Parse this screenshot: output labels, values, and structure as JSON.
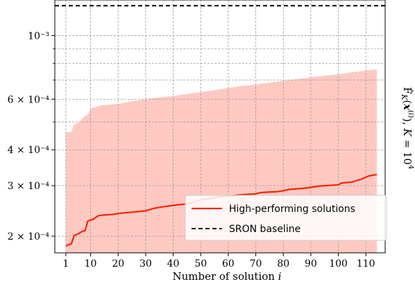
{
  "chart_data": {
    "type": "line",
    "xlabel": "Number of solution i",
    "ylabel": "F̂_K(x⁽ⁱ⁾), K = 10⁴",
    "y_scale": "log",
    "xlim": [
      -3,
      117
    ],
    "ylim": [
      0.000175,
      0.00133
    ],
    "x_ticks": [
      1,
      10,
      20,
      30,
      40,
      50,
      60,
      70,
      80,
      90,
      100,
      110
    ],
    "y_ticks": [
      {
        "value": 0.0002,
        "label": "2 × 10⁻⁴"
      },
      {
        "value": 0.0003,
        "label": "3 × 10⁻⁴"
      },
      {
        "value": 0.0004,
        "label": "4 × 10⁻⁴"
      },
      {
        "value": 0.0006,
        "label": "6 × 10⁻⁴"
      },
      {
        "value": 0.001,
        "label": "10⁻³"
      }
    ],
    "y_minor_ticks": [
      0.0005,
      0.0007,
      0.0008,
      0.0009
    ],
    "grid": true,
    "legend": {
      "position": "lower-right",
      "entries": [
        {
          "label": "High-performing solutions",
          "color": "#ff2200",
          "style": "solid"
        },
        {
          "label": "SRON baseline",
          "color": "#000000",
          "style": "dashed"
        }
      ]
    },
    "series": [
      {
        "name": "High-performing solutions",
        "color": "#ff2200",
        "points": [
          [
            1,
            0.000185
          ],
          [
            2,
            0.000187
          ],
          [
            3,
            0.000188
          ],
          [
            4,
            0.000201
          ],
          [
            6,
            0.000205
          ],
          [
            7,
            0.000208
          ],
          [
            8,
            0.000209
          ],
          [
            9,
            0.000226
          ],
          [
            11,
            0.000229
          ],
          [
            12,
            0.000233
          ],
          [
            13,
            0.000236
          ],
          [
            15,
            0.000237
          ],
          [
            18,
            0.000238
          ],
          [
            20,
            0.00024
          ],
          [
            24,
            0.000242
          ],
          [
            30,
            0.000245
          ],
          [
            33,
            0.00025
          ],
          [
            36,
            0.000253
          ],
          [
            40,
            0.000256
          ],
          [
            45,
            0.000259
          ],
          [
            47,
            0.000262
          ],
          [
            50,
            0.000268
          ],
          [
            53,
            0.00027
          ],
          [
            55,
            0.000273
          ],
          [
            58,
            0.000275
          ],
          [
            62,
            0.000277
          ],
          [
            65,
            0.000279
          ],
          [
            70,
            0.000281
          ],
          [
            72,
            0.000284
          ],
          [
            78,
            0.000286
          ],
          [
            80,
            0.000288
          ],
          [
            82,
            0.000291
          ],
          [
            88,
            0.000294
          ],
          [
            93,
            0.000299
          ],
          [
            100,
            0.000302
          ],
          [
            101,
            0.000306
          ],
          [
            105,
            0.000309
          ],
          [
            108,
            0.000315
          ],
          [
            111,
            0.000324
          ],
          [
            114,
            0.000328
          ]
        ]
      },
      {
        "name": "SRON baseline",
        "color": "#000000",
        "constant": 0.00127
      }
    ],
    "band": {
      "color": "#ffc9c2",
      "lower": 0.000175,
      "upper": [
        [
          1,
          0.00046
        ],
        [
          2,
          0.00046
        ],
        [
          3,
          0.000462
        ],
        [
          4,
          0.00049
        ],
        [
          6,
          0.0005
        ],
        [
          7,
          0.000515
        ],
        [
          8,
          0.000525
        ],
        [
          9,
          0.00053
        ],
        [
          10,
          0.000557
        ],
        [
          11,
          0.00056
        ],
        [
          14,
          0.000572
        ],
        [
          20,
          0.000578
        ],
        [
          25,
          0.00059
        ],
        [
          30,
          0.0006
        ],
        [
          35,
          0.000609
        ],
        [
          40,
          0.000615
        ],
        [
          45,
          0.000626
        ],
        [
          50,
          0.000635
        ],
        [
          55,
          0.000645
        ],
        [
          60,
          0.000657
        ],
        [
          65,
          0.000667
        ],
        [
          70,
          0.000675
        ],
        [
          75,
          0.000685
        ],
        [
          80,
          0.000695
        ],
        [
          85,
          0.000705
        ],
        [
          90,
          0.000715
        ],
        [
          95,
          0.000725
        ],
        [
          100,
          0.000733
        ],
        [
          105,
          0.000745
        ],
        [
          110,
          0.000755
        ],
        [
          114,
          0.000762
        ]
      ]
    }
  }
}
